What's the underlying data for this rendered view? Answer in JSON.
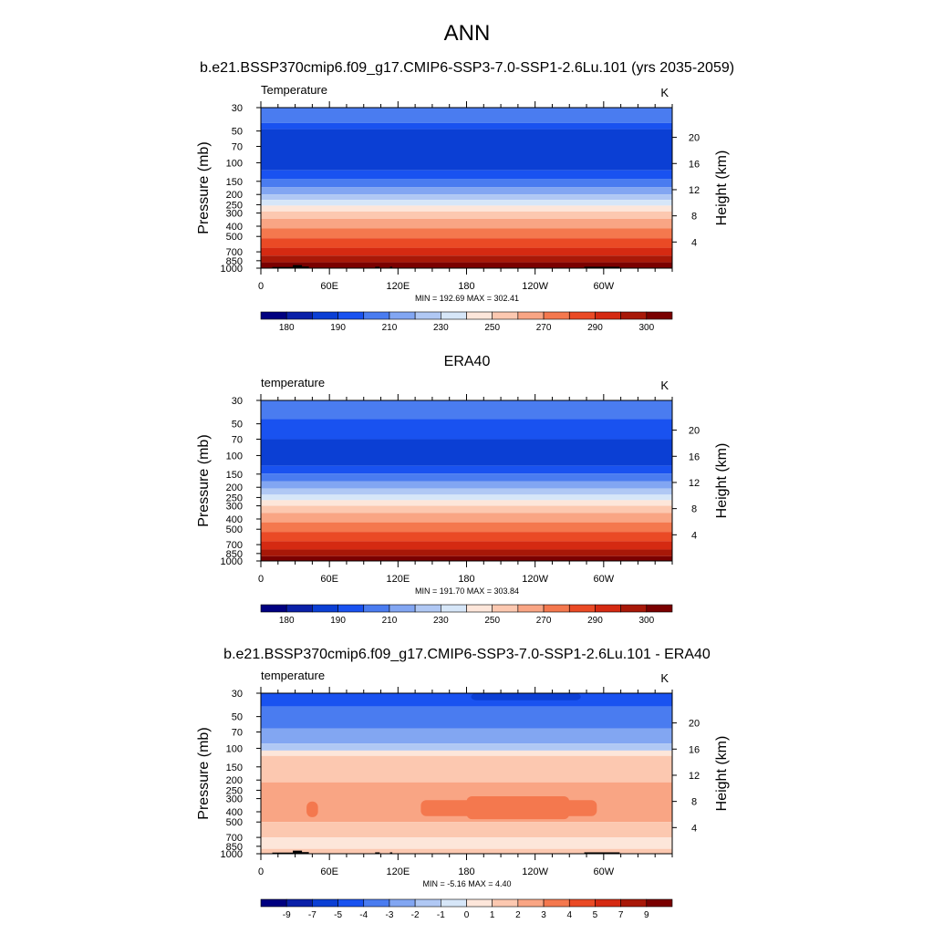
{
  "page": {
    "title": "ANN",
    "subtitle": "b.e21.BSSP370cmip6.f09_g17.CMIP6-SSP3-7.0-SSP1-2.6Lu.101 (yrs 2035-2059)"
  },
  "chart_data": [
    {
      "type": "heatmap",
      "panel_title": "",
      "left_label": "Temperature",
      "unit_label": "K",
      "ylabel": "Pressure (mb)",
      "ylabel_right": "Height (km)",
      "x_ticks": [
        "0",
        "60E",
        "120E",
        "180",
        "120W",
        "60W"
      ],
      "x_range": [
        0,
        360
      ],
      "y_ticks": [
        "30",
        "50",
        "70",
        "100",
        "150",
        "200",
        "250",
        "300",
        "400",
        "500",
        "700",
        "850",
        "1000"
      ],
      "y_right_ticks": [
        "20",
        "16",
        "12",
        "8",
        "4"
      ],
      "y_range_mb": [
        30,
        1000
      ],
      "stats": "MIN = 192.69  MAX = 302.41",
      "colorbar_labels": [
        "180",
        "190",
        "210",
        "230",
        "250",
        "270",
        "290",
        "300"
      ],
      "bands": [
        {
          "from": 30,
          "to": 42,
          "level": 4
        },
        {
          "from": 42,
          "to": 48,
          "level": 3
        },
        {
          "from": 48,
          "to": 118,
          "level": 2
        },
        {
          "from": 118,
          "to": 142,
          "level": 3
        },
        {
          "from": 142,
          "to": 170,
          "level": 4
        },
        {
          "from": 170,
          "to": 200,
          "level": 5
        },
        {
          "from": 200,
          "to": 225,
          "level": 6
        },
        {
          "from": 225,
          "to": 255,
          "level": 7
        },
        {
          "from": 255,
          "to": 290,
          "level": 8
        },
        {
          "from": 290,
          "to": 340,
          "level": 9
        },
        {
          "from": 340,
          "to": 420,
          "level": 10
        },
        {
          "from": 420,
          "to": 520,
          "level": 11
        },
        {
          "from": 520,
          "to": 640,
          "level": 12
        },
        {
          "from": 640,
          "to": 760,
          "level": 13
        },
        {
          "from": 760,
          "to": 880,
          "level": 14
        },
        {
          "from": 880,
          "to": 1000,
          "level": 15
        }
      ],
      "terrain": [
        {
          "lon": [
            10,
            38
          ],
          "top": 975
        },
        {
          "lon": [
            28,
            36
          ],
          "top": 935
        },
        {
          "lon": [
            36,
            42
          ],
          "top": 965
        },
        {
          "lon": [
            100,
            104
          ],
          "top": 970
        },
        {
          "lon": [
            113,
            115
          ],
          "top": 970
        },
        {
          "lon": [
            283,
            314
          ],
          "top": 970
        }
      ]
    },
    {
      "type": "heatmap",
      "panel_title": "ERA40",
      "left_label": "temperature",
      "unit_label": "K",
      "ylabel": "Pressure (mb)",
      "ylabel_right": "Height (km)",
      "x_ticks": [
        "0",
        "60E",
        "120E",
        "180",
        "120W",
        "60W"
      ],
      "x_range": [
        0,
        360
      ],
      "y_ticks": [
        "30",
        "50",
        "70",
        "100",
        "150",
        "200",
        "250",
        "300",
        "400",
        "500",
        "700",
        "850",
        "1000"
      ],
      "y_right_ticks": [
        "20",
        "16",
        "12",
        "8",
        "4"
      ],
      "y_range_mb": [
        30,
        1000
      ],
      "stats": "MIN = 191.70  MAX = 303.84",
      "colorbar_labels": [
        "180",
        "190",
        "210",
        "230",
        "250",
        "270",
        "290",
        "300"
      ],
      "bands": [
        {
          "from": 30,
          "to": 45,
          "level": 4
        },
        {
          "from": 45,
          "to": 70,
          "level": 3
        },
        {
          "from": 70,
          "to": 125,
          "level": 2
        },
        {
          "from": 125,
          "to": 148,
          "level": 3
        },
        {
          "from": 148,
          "to": 175,
          "level": 4
        },
        {
          "from": 175,
          "to": 205,
          "level": 5
        },
        {
          "from": 205,
          "to": 235,
          "level": 6
        },
        {
          "from": 235,
          "to": 265,
          "level": 7
        },
        {
          "from": 265,
          "to": 300,
          "level": 8
        },
        {
          "from": 300,
          "to": 350,
          "level": 9
        },
        {
          "from": 350,
          "to": 430,
          "level": 10
        },
        {
          "from": 430,
          "to": 530,
          "level": 11
        },
        {
          "from": 530,
          "to": 650,
          "level": 12
        },
        {
          "from": 650,
          "to": 780,
          "level": 13
        },
        {
          "from": 780,
          "to": 900,
          "level": 14
        },
        {
          "from": 900,
          "to": 1000,
          "level": 15
        }
      ],
      "terrain": []
    },
    {
      "type": "heatmap",
      "panel_title": "b.e21.BSSP370cmip6.f09_g17.CMIP6-SSP3-7.0-SSP1-2.6Lu.101 - ERA40",
      "left_label": "temperature",
      "unit_label": "K",
      "ylabel": "Pressure (mb)",
      "ylabel_right": "Height (km)",
      "x_ticks": [
        "0",
        "60E",
        "120E",
        "180",
        "120W",
        "60W"
      ],
      "x_range": [
        0,
        360
      ],
      "y_ticks": [
        "30",
        "50",
        "70",
        "100",
        "150",
        "200",
        "250",
        "300",
        "400",
        "500",
        "700",
        "850",
        "1000"
      ],
      "y_right_ticks": [
        "20",
        "16",
        "12",
        "8",
        "4"
      ],
      "y_range_mb": [
        30,
        1000
      ],
      "stats": "MIN =  -5.16  MAX =   4.40",
      "colorbar_labels": [
        "-9",
        "-7",
        "-5",
        "-4",
        "-3",
        "-2",
        "-1",
        "0",
        "1",
        "2",
        "3",
        "4",
        "5",
        "7",
        "9"
      ],
      "bands": [
        {
          "from": 30,
          "to": 40,
          "level": 3
        },
        {
          "from": 40,
          "to": 65,
          "level": 4
        },
        {
          "from": 65,
          "to": 90,
          "level": 5
        },
        {
          "from": 90,
          "to": 105,
          "level": 6
        },
        {
          "from": 105,
          "to": 118,
          "level": 8
        },
        {
          "from": 118,
          "to": 210,
          "level": 9
        },
        {
          "from": 210,
          "to": 500,
          "level": 10
        },
        {
          "from": 500,
          "to": 700,
          "level": 9
        },
        {
          "from": 700,
          "to": 900,
          "level": 8
        },
        {
          "from": 900,
          "to": 1000,
          "level": 9
        }
      ],
      "blobs": [
        {
          "lon": [
            40,
            50
          ],
          "p": [
            320,
            450
          ],
          "level": 11
        },
        {
          "lon": [
            140,
            294
          ],
          "p": [
            310,
            440
          ],
          "level": 11
        },
        {
          "lon": [
            180,
            270
          ],
          "p": [
            285,
            470
          ],
          "level": 11
        },
        {
          "lon": [
            184,
            280
          ],
          "p": [
            26,
            35
          ],
          "level": 2
        }
      ],
      "terrain": [
        {
          "lon": [
            10,
            38
          ],
          "top": 975
        },
        {
          "lon": [
            28,
            36
          ],
          "top": 935
        },
        {
          "lon": [
            36,
            42
          ],
          "top": 965
        },
        {
          "lon": [
            100,
            104
          ],
          "top": 970
        },
        {
          "lon": [
            113,
            115
          ],
          "top": 970
        },
        {
          "lon": [
            283,
            314
          ],
          "top": 970
        }
      ]
    }
  ],
  "palettes": {
    "absolute": [
      "#000080",
      "#0a20a8",
      "#0b3fd4",
      "#1952f0",
      "#4a7cf0",
      "#82a6f2",
      "#b0c8f4",
      "#d6e6f8",
      "#fde6da",
      "#fcc8b0",
      "#f9a584",
      "#f4784e",
      "#ea4a25",
      "#d52a12",
      "#a81808",
      "#7a0000"
    ],
    "difference": [
      "#000080",
      "#0a20a8",
      "#0b3fd4",
      "#1952f0",
      "#4a7cf0",
      "#82a6f2",
      "#b0c8f4",
      "#d6e6f8",
      "#fde6da",
      "#fcc8b0",
      "#f9a584",
      "#f4784e",
      "#ea4a25",
      "#d52a12",
      "#a81808",
      "#7a0000"
    ]
  }
}
